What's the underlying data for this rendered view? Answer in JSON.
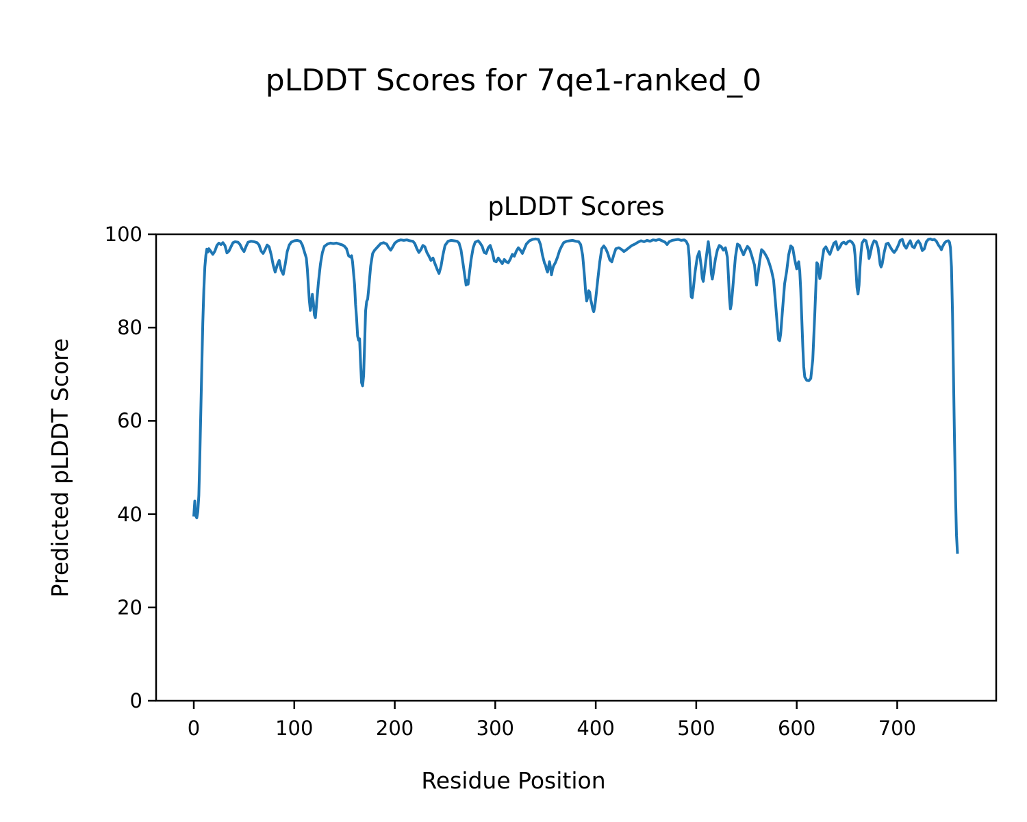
{
  "figure": {
    "suptitle": "pLDDT Scores for 7qe1-ranked_0"
  },
  "chart_data": {
    "type": "line",
    "title": "pLDDT Scores",
    "xlabel": "Residue Position",
    "ylabel": "Predicted pLDDT Score",
    "series_name": "pLDDT",
    "line_color": "#1f77b4",
    "axis_color": "#000000",
    "xlim": [
      -37.5,
      798.5
    ],
    "ylim": [
      0,
      100
    ],
    "xticks": [
      0,
      100,
      200,
      300,
      400,
      500,
      600,
      700
    ],
    "yticks": [
      0,
      20,
      40,
      60,
      80,
      100
    ],
    "grid": false,
    "legend": "none",
    "points": [
      [
        0,
        39.5
      ],
      [
        1,
        42.8
      ],
      [
        2,
        39.6
      ],
      [
        3,
        39.2
      ],
      [
        4,
        40.5
      ],
      [
        5,
        44
      ],
      [
        6,
        52
      ],
      [
        7,
        62
      ],
      [
        8,
        72
      ],
      [
        9,
        81
      ],
      [
        10,
        88
      ],
      [
        11,
        93
      ],
      [
        12,
        95.5
      ],
      [
        13,
        96.8
      ],
      [
        14,
        96.2
      ],
      [
        15,
        96.9
      ],
      [
        17,
        96.3
      ],
      [
        19,
        95.7
      ],
      [
        21,
        96.4
      ],
      [
        23,
        97.6
      ],
      [
        25,
        98.1
      ],
      [
        27,
        97.8
      ],
      [
        29,
        98.2
      ],
      [
        31,
        97.6
      ],
      [
        33,
        96
      ],
      [
        35,
        96.4
      ],
      [
        37,
        97.3
      ],
      [
        39,
        98.2
      ],
      [
        41,
        98.4
      ],
      [
        44,
        98.3
      ],
      [
        46,
        97.8
      ],
      [
        48,
        96.9
      ],
      [
        50,
        96.3
      ],
      [
        52,
        97.4
      ],
      [
        54,
        98.3
      ],
      [
        57,
        98.5
      ],
      [
        60,
        98.4
      ],
      [
        63,
        98.2
      ],
      [
        65,
        97.7
      ],
      [
        67,
        96.4
      ],
      [
        69,
        95.9
      ],
      [
        71,
        96.7
      ],
      [
        73,
        97.7
      ],
      [
        75,
        97.3
      ],
      [
        77,
        95.6
      ],
      [
        79,
        93.4
      ],
      [
        81,
        91.9
      ],
      [
        83,
        93.4
      ],
      [
        85,
        94.4
      ],
      [
        87,
        92.3
      ],
      [
        89,
        91.4
      ],
      [
        91,
        93.6
      ],
      [
        93,
        96.3
      ],
      [
        95,
        97.7
      ],
      [
        97,
        98.3
      ],
      [
        100,
        98.6
      ],
      [
        103,
        98.7
      ],
      [
        106,
        98.5
      ],
      [
        108,
        97.7
      ],
      [
        110,
        96.3
      ],
      [
        112,
        94.9
      ],
      [
        113,
        92.5
      ],
      [
        114,
        89
      ],
      [
        115,
        85.8
      ],
      [
        116,
        83.7
      ],
      [
        117,
        85.1
      ],
      [
        118,
        87.1
      ],
      [
        119,
        85.3
      ],
      [
        120,
        82.7
      ],
      [
        121,
        82.1
      ],
      [
        122,
        84.6
      ],
      [
        124,
        89.6
      ],
      [
        126,
        93.6
      ],
      [
        128,
        96.1
      ],
      [
        130,
        97.4
      ],
      [
        133,
        97.9
      ],
      [
        136,
        98.1
      ],
      [
        139,
        98
      ],
      [
        142,
        98.1
      ],
      [
        145,
        97.9
      ],
      [
        148,
        97.7
      ],
      [
        150,
        97.4
      ],
      [
        152,
        96.9
      ],
      [
        154,
        95.4
      ],
      [
        156,
        95.1
      ],
      [
        157,
        95.4
      ],
      [
        158,
        94.1
      ],
      [
        160,
        89.2
      ],
      [
        161,
        85
      ],
      [
        162,
        82.1
      ],
      [
        163,
        78.2
      ],
      [
        164,
        77.3
      ],
      [
        165,
        77.6
      ],
      [
        166,
        72.3
      ],
      [
        167,
        68.2
      ],
      [
        168,
        67.5
      ],
      [
        169,
        69.7
      ],
      [
        170,
        76.2
      ],
      [
        171,
        83.6
      ],
      [
        172,
        85.6
      ],
      [
        173,
        86.1
      ],
      [
        174,
        88.2
      ],
      [
        176,
        93.2
      ],
      [
        178,
        95.9
      ],
      [
        180,
        96.6
      ],
      [
        183,
        97.3
      ],
      [
        186,
        98
      ],
      [
        189,
        98.2
      ],
      [
        192,
        97.9
      ],
      [
        194,
        97.1
      ],
      [
        196,
        96.6
      ],
      [
        198,
        97.3
      ],
      [
        200,
        98.1
      ],
      [
        203,
        98.6
      ],
      [
        206,
        98.8
      ],
      [
        209,
        98.7
      ],
      [
        212,
        98.8
      ],
      [
        215,
        98.6
      ],
      [
        218,
        98.5
      ],
      [
        220,
        98
      ],
      [
        222,
        96.9
      ],
      [
        224,
        96.1
      ],
      [
        226,
        96.7
      ],
      [
        228,
        97.6
      ],
      [
        230,
        97.3
      ],
      [
        232,
        96.1
      ],
      [
        234,
        95.3
      ],
      [
        236,
        94.4
      ],
      [
        238,
        94.9
      ],
      [
        240,
        93.7
      ],
      [
        242,
        92.6
      ],
      [
        244,
        91.6
      ],
      [
        246,
        93.1
      ],
      [
        248,
        95.6
      ],
      [
        250,
        97.6
      ],
      [
        253,
        98.5
      ],
      [
        256,
        98.7
      ],
      [
        259,
        98.6
      ],
      [
        262,
        98.5
      ],
      [
        264,
        98.1
      ],
      [
        266,
        96.6
      ],
      [
        268,
        93.6
      ],
      [
        270,
        90.6
      ],
      [
        271,
        89.1
      ],
      [
        272,
        90.1
      ],
      [
        273,
        89.3
      ],
      [
        274,
        91.1
      ],
      [
        276,
        94.6
      ],
      [
        278,
        97.1
      ],
      [
        280,
        98.3
      ],
      [
        283,
        98.6
      ],
      [
        285,
        98.1
      ],
      [
        287,
        97.4
      ],
      [
        289,
        96.1
      ],
      [
        291,
        95.9
      ],
      [
        293,
        97.1
      ],
      [
        295,
        97.6
      ],
      [
        297,
        96.3
      ],
      [
        299,
        94.3
      ],
      [
        301,
        94.1
      ],
      [
        303,
        94.9
      ],
      [
        305,
        94.3
      ],
      [
        307,
        93.7
      ],
      [
        309,
        94.6
      ],
      [
        311,
        94.1
      ],
      [
        313,
        93.9
      ],
      [
        315,
        94.7
      ],
      [
        317,
        95.7
      ],
      [
        319,
        95.3
      ],
      [
        321,
        96.4
      ],
      [
        323,
        97.1
      ],
      [
        325,
        96.6
      ],
      [
        327,
        95.9
      ],
      [
        329,
        96.9
      ],
      [
        331,
        97.9
      ],
      [
        334,
        98.6
      ],
      [
        337,
        98.9
      ],
      [
        340,
        99
      ],
      [
        343,
        98.9
      ],
      [
        345,
        97.8
      ],
      [
        347,
        95.5
      ],
      [
        349,
        93.8
      ],
      [
        350,
        93.4
      ],
      [
        351,
        92.5
      ],
      [
        352,
        91.9
      ],
      [
        353,
        93
      ],
      [
        354,
        94.1
      ],
      [
        355,
        92.8
      ],
      [
        356,
        91.3
      ],
      [
        357,
        92.5
      ],
      [
        358,
        93.2
      ],
      [
        360,
        94
      ],
      [
        362,
        95.1
      ],
      [
        364,
        96.5
      ],
      [
        366,
        97.4
      ],
      [
        368,
        98.2
      ],
      [
        371,
        98.5
      ],
      [
        374,
        98.6
      ],
      [
        377,
        98.7
      ],
      [
        380,
        98.5
      ],
      [
        383,
        98.4
      ],
      [
        385,
        97.8
      ],
      [
        387,
        95.5
      ],
      [
        389,
        90.5
      ],
      [
        390,
        87.5
      ],
      [
        391,
        85.7
      ],
      [
        392,
        86.5
      ],
      [
        393,
        87.9
      ],
      [
        394,
        87.6
      ],
      [
        395,
        86
      ],
      [
        396,
        85.1
      ],
      [
        397,
        84
      ],
      [
        398,
        83.4
      ],
      [
        399,
        84.5
      ],
      [
        400,
        86.2
      ],
      [
        402,
        90.3
      ],
      [
        404,
        94.1
      ],
      [
        406,
        96.9
      ],
      [
        408,
        97.5
      ],
      [
        410,
        96.9
      ],
      [
        412,
        95.9
      ],
      [
        414,
        94.5
      ],
      [
        416,
        94.1
      ],
      [
        418,
        95.6
      ],
      [
        420,
        96.9
      ],
      [
        423,
        97.1
      ],
      [
        426,
        96.7
      ],
      [
        428,
        96.3
      ],
      [
        430,
        96.6
      ],
      [
        433,
        97.1
      ],
      [
        436,
        97.6
      ],
      [
        439,
        97.9
      ],
      [
        442,
        98.3
      ],
      [
        445,
        98.6
      ],
      [
        448,
        98.4
      ],
      [
        451,
        98.7
      ],
      [
        454,
        98.5
      ],
      [
        457,
        98.8
      ],
      [
        460,
        98.7
      ],
      [
        463,
        98.9
      ],
      [
        466,
        98.6
      ],
      [
        469,
        98.3
      ],
      [
        471,
        97.8
      ],
      [
        473,
        98.4
      ],
      [
        476,
        98.7
      ],
      [
        479,
        98.8
      ],
      [
        482,
        98.9
      ],
      [
        485,
        98.7
      ],
      [
        488,
        98.8
      ],
      [
        490,
        98.5
      ],
      [
        492,
        97.6
      ],
      [
        493,
        95.1
      ],
      [
        494,
        90.1
      ],
      [
        495,
        86.6
      ],
      [
        496,
        86.4
      ],
      [
        497,
        88.1
      ],
      [
        499,
        92.1
      ],
      [
        501,
        95.1
      ],
      [
        503,
        96.3
      ],
      [
        505,
        93.1
      ],
      [
        506,
        90.6
      ],
      [
        507,
        89.9
      ],
      [
        508,
        91.6
      ],
      [
        510,
        95.1
      ],
      [
        512,
        98.4
      ],
      [
        514,
        95.1
      ],
      [
        515,
        91.6
      ],
      [
        516,
        90.4
      ],
      [
        517,
        91.6
      ],
      [
        519,
        94.6
      ],
      [
        521,
        96.6
      ],
      [
        523,
        97.6
      ],
      [
        525,
        97.3
      ],
      [
        527,
        96.6
      ],
      [
        529,
        97.1
      ],
      [
        531,
        95.1
      ],
      [
        532,
        91.1
      ],
      [
        533,
        86.6
      ],
      [
        534,
        84
      ],
      [
        535,
        85.1
      ],
      [
        537,
        90.1
      ],
      [
        539,
        95.1
      ],
      [
        541,
        97.9
      ],
      [
        543,
        97.6
      ],
      [
        545,
        96.6
      ],
      [
        547,
        95.6
      ],
      [
        549,
        96.6
      ],
      [
        551,
        97.4
      ],
      [
        553,
        96.9
      ],
      [
        555,
        95.6
      ],
      [
        557,
        94.1
      ],
      [
        558,
        93.4
      ],
      [
        559,
        91.1
      ],
      [
        560,
        89.1
      ],
      [
        561,
        90.6
      ],
      [
        563,
        94.1
      ],
      [
        565,
        96.7
      ],
      [
        567,
        96.3
      ],
      [
        569,
        95.6
      ],
      [
        571,
        94.8
      ],
      [
        573,
        93.6
      ],
      [
        575,
        92.1
      ],
      [
        577,
        90.1
      ],
      [
        579,
        85.1
      ],
      [
        581,
        79.6
      ],
      [
        582,
        77.4
      ],
      [
        583,
        77.2
      ],
      [
        584,
        78.6
      ],
      [
        586,
        84.1
      ],
      [
        588,
        89.4
      ],
      [
        590,
        92.1
      ],
      [
        592,
        95.6
      ],
      [
        594,
        97.5
      ],
      [
        596,
        97.1
      ],
      [
        598,
        94.6
      ],
      [
        600,
        92.6
      ],
      [
        601,
        93.6
      ],
      [
        602,
        94.1
      ],
      [
        603,
        92.1
      ],
      [
        604,
        88.1
      ],
      [
        605,
        82.1
      ],
      [
        606,
        76.1
      ],
      [
        607,
        71.6
      ],
      [
        608,
        69.4
      ],
      [
        610,
        68.7
      ],
      [
        612,
        68.6
      ],
      [
        614,
        69.1
      ],
      [
        616,
        73.1
      ],
      [
        618,
        83.1
      ],
      [
        620,
        93.9
      ],
      [
        621,
        93.6
      ],
      [
        622,
        92.1
      ],
      [
        623,
        90.5
      ],
      [
        624,
        91.6
      ],
      [
        625,
        94.1
      ],
      [
        627,
        96.8
      ],
      [
        629,
        97.3
      ],
      [
        631,
        96.4
      ],
      [
        633,
        95.7
      ],
      [
        635,
        96.9
      ],
      [
        637,
        98.1
      ],
      [
        639,
        98.4
      ],
      [
        641,
        96.7
      ],
      [
        643,
        97.3
      ],
      [
        645,
        98.1
      ],
      [
        647,
        98.3
      ],
      [
        649,
        97.9
      ],
      [
        651,
        98.4
      ],
      [
        653,
        98.6
      ],
      [
        655,
        98.3
      ],
      [
        657,
        97.6
      ],
      [
        658,
        95.6
      ],
      [
        659,
        92.1
      ],
      [
        660,
        88.6
      ],
      [
        661,
        87.2
      ],
      [
        662,
        89.1
      ],
      [
        663,
        93.1
      ],
      [
        664,
        96.1
      ],
      [
        665,
        98.1
      ],
      [
        667,
        98.8
      ],
      [
        669,
        98.6
      ],
      [
        671,
        96.6
      ],
      [
        672,
        94.8
      ],
      [
        673,
        95.6
      ],
      [
        675,
        97.6
      ],
      [
        677,
        98.6
      ],
      [
        679,
        98.4
      ],
      [
        681,
        97.1
      ],
      [
        683,
        93.6
      ],
      [
        684,
        93
      ],
      [
        685,
        93.6
      ],
      [
        687,
        96.1
      ],
      [
        689,
        97.9
      ],
      [
        691,
        98.1
      ],
      [
        693,
        97.3
      ],
      [
        695,
        96.6
      ],
      [
        697,
        96.1
      ],
      [
        699,
        96.7
      ],
      [
        701,
        97.6
      ],
      [
        703,
        98.7
      ],
      [
        705,
        98.9
      ],
      [
        707,
        97.6
      ],
      [
        709,
        97
      ],
      [
        711,
        97.9
      ],
      [
        713,
        98.6
      ],
      [
        715,
        97.4
      ],
      [
        717,
        97.1
      ],
      [
        719,
        98.1
      ],
      [
        721,
        98.6
      ],
      [
        723,
        97.9
      ],
      [
        725,
        96.5
      ],
      [
        727,
        96.9
      ],
      [
        729,
        98.4
      ],
      [
        731,
        98.9
      ],
      [
        733,
        99
      ],
      [
        735,
        98.8
      ],
      [
        737,
        98.9
      ],
      [
        739,
        98.5
      ],
      [
        741,
        97.7
      ],
      [
        743,
        97.1
      ],
      [
        744,
        96.7
      ],
      [
        745,
        97.3
      ],
      [
        747,
        98.1
      ],
      [
        749,
        98.5
      ],
      [
        751,
        98.6
      ],
      [
        752,
        98.3
      ],
      [
        753,
        97.1
      ],
      [
        754,
        93
      ],
      [
        755,
        83
      ],
      [
        756,
        70
      ],
      [
        757,
        56
      ],
      [
        758,
        44
      ],
      [
        759,
        35.5
      ],
      [
        760,
        31.5
      ]
    ]
  }
}
